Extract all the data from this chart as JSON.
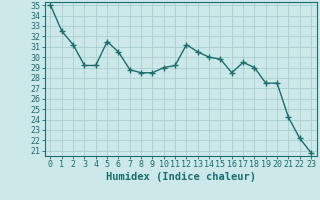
{
  "x": [
    0,
    1,
    2,
    3,
    4,
    5,
    6,
    7,
    8,
    9,
    10,
    11,
    12,
    13,
    14,
    15,
    16,
    17,
    18,
    19,
    20,
    21,
    22,
    23
  ],
  "y": [
    35,
    32.5,
    31.2,
    29.2,
    29.2,
    31.5,
    30.5,
    28.8,
    28.5,
    28.5,
    29.0,
    29.2,
    31.2,
    30.5,
    30.0,
    29.8,
    28.5,
    29.5,
    29.0,
    27.5,
    27.5,
    24.2,
    22.2,
    20.8
  ],
  "line_color": "#1a6e6e",
  "marker": "+",
  "marker_size": 4,
  "bg_color": "#cce8e8",
  "grid_color": "#aacfcf",
  "xlabel": "Humidex (Indice chaleur)",
  "ylim_min": 20.5,
  "ylim_max": 35.3,
  "yticks": [
    21,
    22,
    23,
    24,
    25,
    26,
    27,
    28,
    29,
    30,
    31,
    32,
    33,
    34,
    35
  ],
  "xticks": [
    0,
    1,
    2,
    3,
    4,
    5,
    6,
    7,
    8,
    9,
    10,
    11,
    12,
    13,
    14,
    15,
    16,
    17,
    18,
    19,
    20,
    21,
    22,
    23
  ],
  "xlabel_fontsize": 7.5,
  "tick_fontsize": 6,
  "line_width": 1.0,
  "marker_edge_width": 1.0
}
